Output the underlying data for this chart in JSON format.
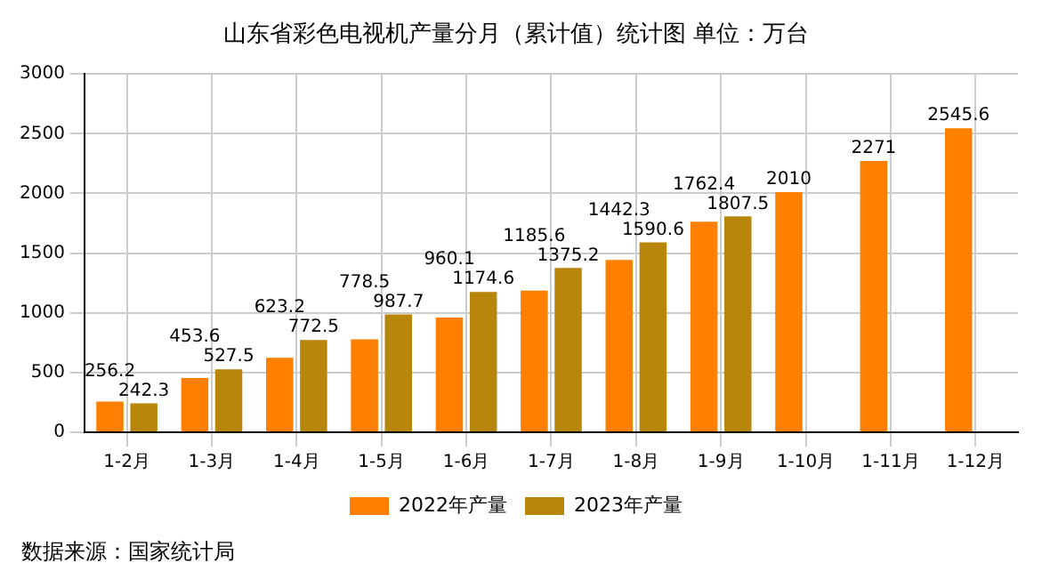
{
  "chart_data": {
    "type": "bar",
    "title": "山东省彩色电视机产量分月（累计值）统计图 单位：万台",
    "categories": [
      "1-2月",
      "1-3月",
      "1-4月",
      "1-5月",
      "1-6月",
      "1-7月",
      "1-8月",
      "1-9月",
      "1-10月",
      "1-11月",
      "1-12月"
    ],
    "series": [
      {
        "name": "2022年产量",
        "color": "#ff8000",
        "values": [
          256.2,
          453.6,
          623.2,
          778.5,
          960.1,
          1185.6,
          1442.3,
          1762.4,
          2010,
          2271,
          2545.6
        ]
      },
      {
        "name": "2023年产量",
        "color": "#b8860b",
        "values": [
          242.3,
          527.5,
          772.5,
          987.7,
          1174.6,
          1375.2,
          1590.6,
          1807.5,
          null,
          null,
          null
        ]
      }
    ],
    "ylim": [
      0,
      3000
    ],
    "yticks": [
      0,
      500,
      1000,
      1500,
      2000,
      2500,
      3000
    ],
    "grid": true,
    "legend": "bottom",
    "data_labels": true,
    "annotations": [
      "数据来源：国家统计局"
    ]
  }
}
